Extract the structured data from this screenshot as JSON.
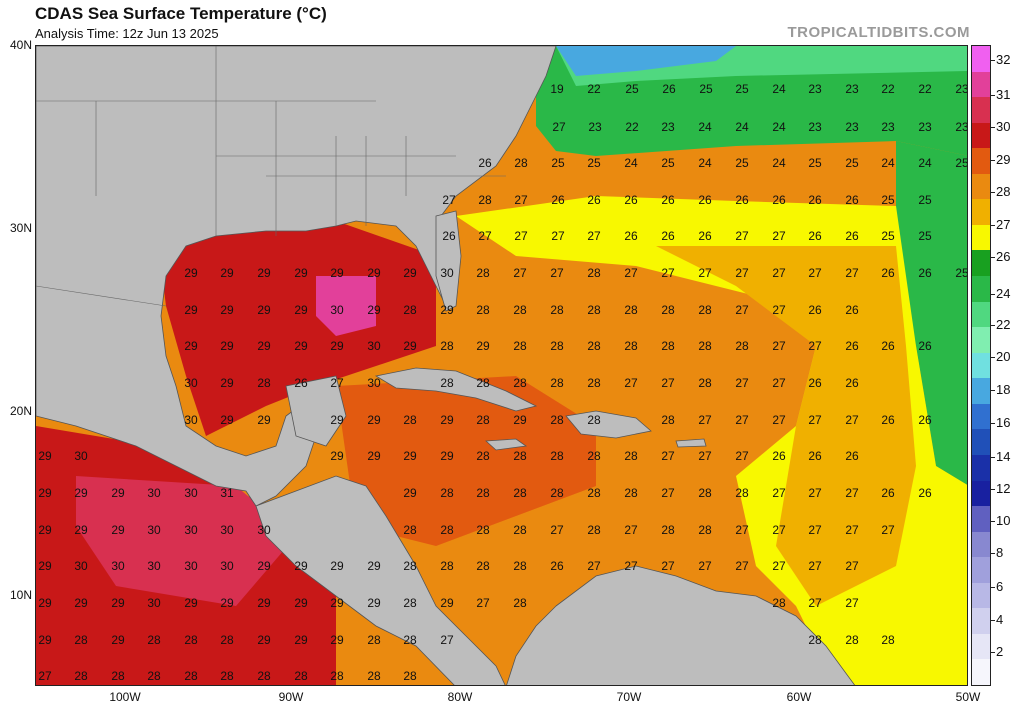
{
  "header": {
    "title": "CDAS Sea Surface Temperature (°C)",
    "subtitle": "Analysis Time: 12z Jun 13 2025",
    "credit": "TROPICALTIDBITS.COM"
  },
  "axes": {
    "lat_labels": [
      "40N",
      "30N",
      "20N",
      "10N"
    ],
    "lon_labels": [
      "100W",
      "90W",
      "80W",
      "70W",
      "60W",
      "50W"
    ]
  },
  "colorbar": {
    "labels": [
      "32",
      "31",
      "30",
      "29",
      "28",
      "27",
      "26",
      "24",
      "22",
      "20",
      "18",
      "16",
      "14",
      "12",
      "10",
      "8",
      "6",
      "4",
      "2"
    ],
    "colors": [
      "#f060f0",
      "#e2409a",
      "#d83050",
      "#c81818",
      "#e25a10",
      "#ea8a10",
      "#f0b000",
      "#f8f800",
      "#18a020",
      "#2ab848",
      "#50d880",
      "#80eeb0",
      "#70e0e0",
      "#48a8e0",
      "#3070d0",
      "#2050b8",
      "#1a30a8",
      "#1820a0",
      "#6060c0",
      "#8888d0",
      "#a0a0dc",
      "#b8b8e6",
      "#d0d0ee",
      "#e6e6f6",
      "#f6f6fc"
    ]
  },
  "sst_labels": {
    "row1": [
      "19",
      "22",
      "25",
      "26",
      "25",
      "25",
      "24",
      "23",
      "23",
      "22",
      "22",
      "23"
    ],
    "row2": [
      "27",
      "23",
      "22",
      "23",
      "24",
      "24",
      "24",
      "23",
      "23",
      "23",
      "23",
      "23"
    ],
    "row3": [
      "26",
      "28",
      "25",
      "25",
      "24",
      "25",
      "24",
      "25",
      "24",
      "25",
      "25",
      "24",
      "24",
      "25"
    ],
    "row4": [
      "27",
      "28",
      "27",
      "26",
      "26",
      "26",
      "26",
      "26",
      "26",
      "26",
      "26",
      "26",
      "25",
      "25"
    ],
    "row5": [
      "26",
      "27",
      "27",
      "27",
      "27",
      "26",
      "26",
      "26",
      "27",
      "27",
      "26",
      "26",
      "25",
      "25"
    ],
    "row6": [
      "29",
      "29",
      "29",
      "29",
      "29",
      "29",
      "29",
      "30",
      "28",
      "27",
      "27",
      "28",
      "27",
      "27",
      "27",
      "27",
      "27",
      "27",
      "27",
      "26",
      "26",
      "25"
    ],
    "row7": [
      "29",
      "29",
      "29",
      "29",
      "30",
      "29",
      "28",
      "29",
      "28",
      "28",
      "28",
      "28",
      "28",
      "28",
      "28",
      "27",
      "27",
      "26",
      "26"
    ],
    "row8": [
      "29",
      "29",
      "29",
      "29",
      "29",
      "30",
      "29",
      "28",
      "29",
      "28",
      "28",
      "28",
      "28",
      "28",
      "28",
      "28",
      "27",
      "27",
      "26",
      "26",
      "26"
    ],
    "row9": [
      "30",
      "29",
      "28",
      "26",
      "27",
      "30",
      "28",
      "28",
      "28",
      "28",
      "28",
      "27",
      "27",
      "28",
      "27",
      "27",
      "26",
      "26"
    ],
    "row10": [
      "30",
      "29",
      "29",
      "29",
      "29",
      "28",
      "29",
      "28",
      "29",
      "28",
      "28",
      "28",
      "27",
      "27",
      "27",
      "27",
      "27",
      "26",
      "26"
    ],
    "row11": [
      "29",
      "30",
      "29",
      "29",
      "29",
      "29",
      "28",
      "28",
      "28",
      "28",
      "28",
      "27",
      "27",
      "27",
      "26",
      "26",
      "26"
    ],
    "row12": [
      "29",
      "29",
      "29",
      "30",
      "30",
      "31",
      "29",
      "28",
      "28",
      "28",
      "28",
      "28",
      "28",
      "27",
      "28",
      "28",
      "27",
      "27",
      "27",
      "26",
      "26"
    ],
    "row13": [
      "29",
      "29",
      "29",
      "30",
      "30",
      "30",
      "30",
      "28",
      "28",
      "28",
      "28",
      "27",
      "28",
      "27",
      "28",
      "28",
      "27",
      "27",
      "27",
      "27",
      "27"
    ],
    "row14": [
      "29",
      "30",
      "30",
      "30",
      "30",
      "30",
      "29",
      "29",
      "29",
      "29",
      "28",
      "28",
      "28",
      "28",
      "26",
      "27",
      "27",
      "27",
      "27",
      "27",
      "27",
      "27",
      "27"
    ],
    "row15": [
      "29",
      "29",
      "29",
      "30",
      "29",
      "29",
      "29",
      "29",
      "29",
      "29",
      "28",
      "29",
      "27",
      "28",
      "28",
      "27",
      "27"
    ],
    "row16": [
      "29",
      "28",
      "29",
      "28",
      "28",
      "28",
      "29",
      "29",
      "29",
      "28",
      "28",
      "27",
      "28",
      "28",
      "28"
    ],
    "row17": [
      "27",
      "28",
      "28",
      "28",
      "28",
      "28",
      "28",
      "28",
      "28",
      "28",
      "28"
    ]
  }
}
